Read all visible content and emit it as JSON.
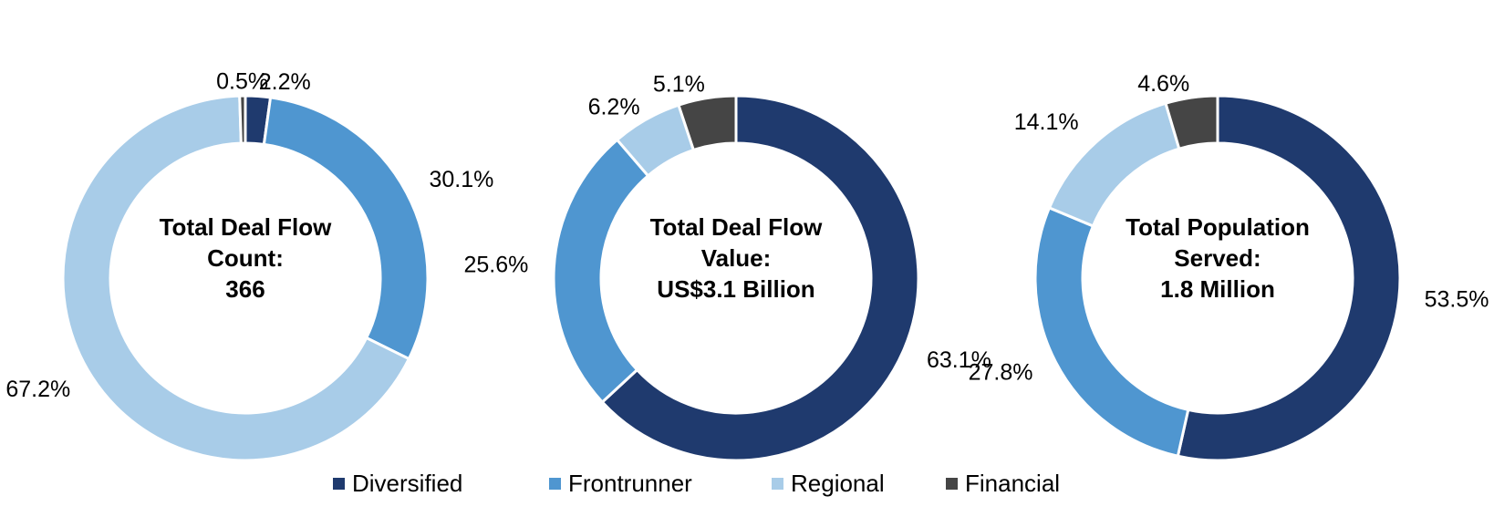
{
  "chart_data": [
    {
      "type": "pie",
      "donut": true,
      "center_lines": [
        "Total Deal Flow",
        "Count:",
        "366"
      ],
      "values": [
        2.2,
        30.1,
        67.2,
        0.5
      ],
      "value_labels": [
        "2.2%",
        "30.1%",
        "67.2%",
        "0.5%"
      ]
    },
    {
      "type": "pie",
      "donut": true,
      "center_lines": [
        "Total Deal Flow",
        "Value:",
        "US$3.1 Billion"
      ],
      "values": [
        63.1,
        25.6,
        6.2,
        5.1
      ],
      "value_labels": [
        "63.1%",
        "25.6%",
        "6.2%",
        "5.1%"
      ]
    },
    {
      "type": "pie",
      "donut": true,
      "center_lines": [
        "Total Population",
        "Served:",
        "1.8 Million"
      ],
      "values": [
        53.5,
        27.8,
        14.1,
        4.6
      ],
      "value_labels": [
        "53.5%",
        "27.8%",
        "14.1%",
        "4.6%"
      ]
    }
  ],
  "legend": {
    "labels": [
      "Diversified",
      "Frontrunner",
      "Regional",
      "Financial"
    ],
    "colors": [
      "#1f3a6e",
      "#4f96d0",
      "#a8cce8",
      "#454545"
    ]
  }
}
